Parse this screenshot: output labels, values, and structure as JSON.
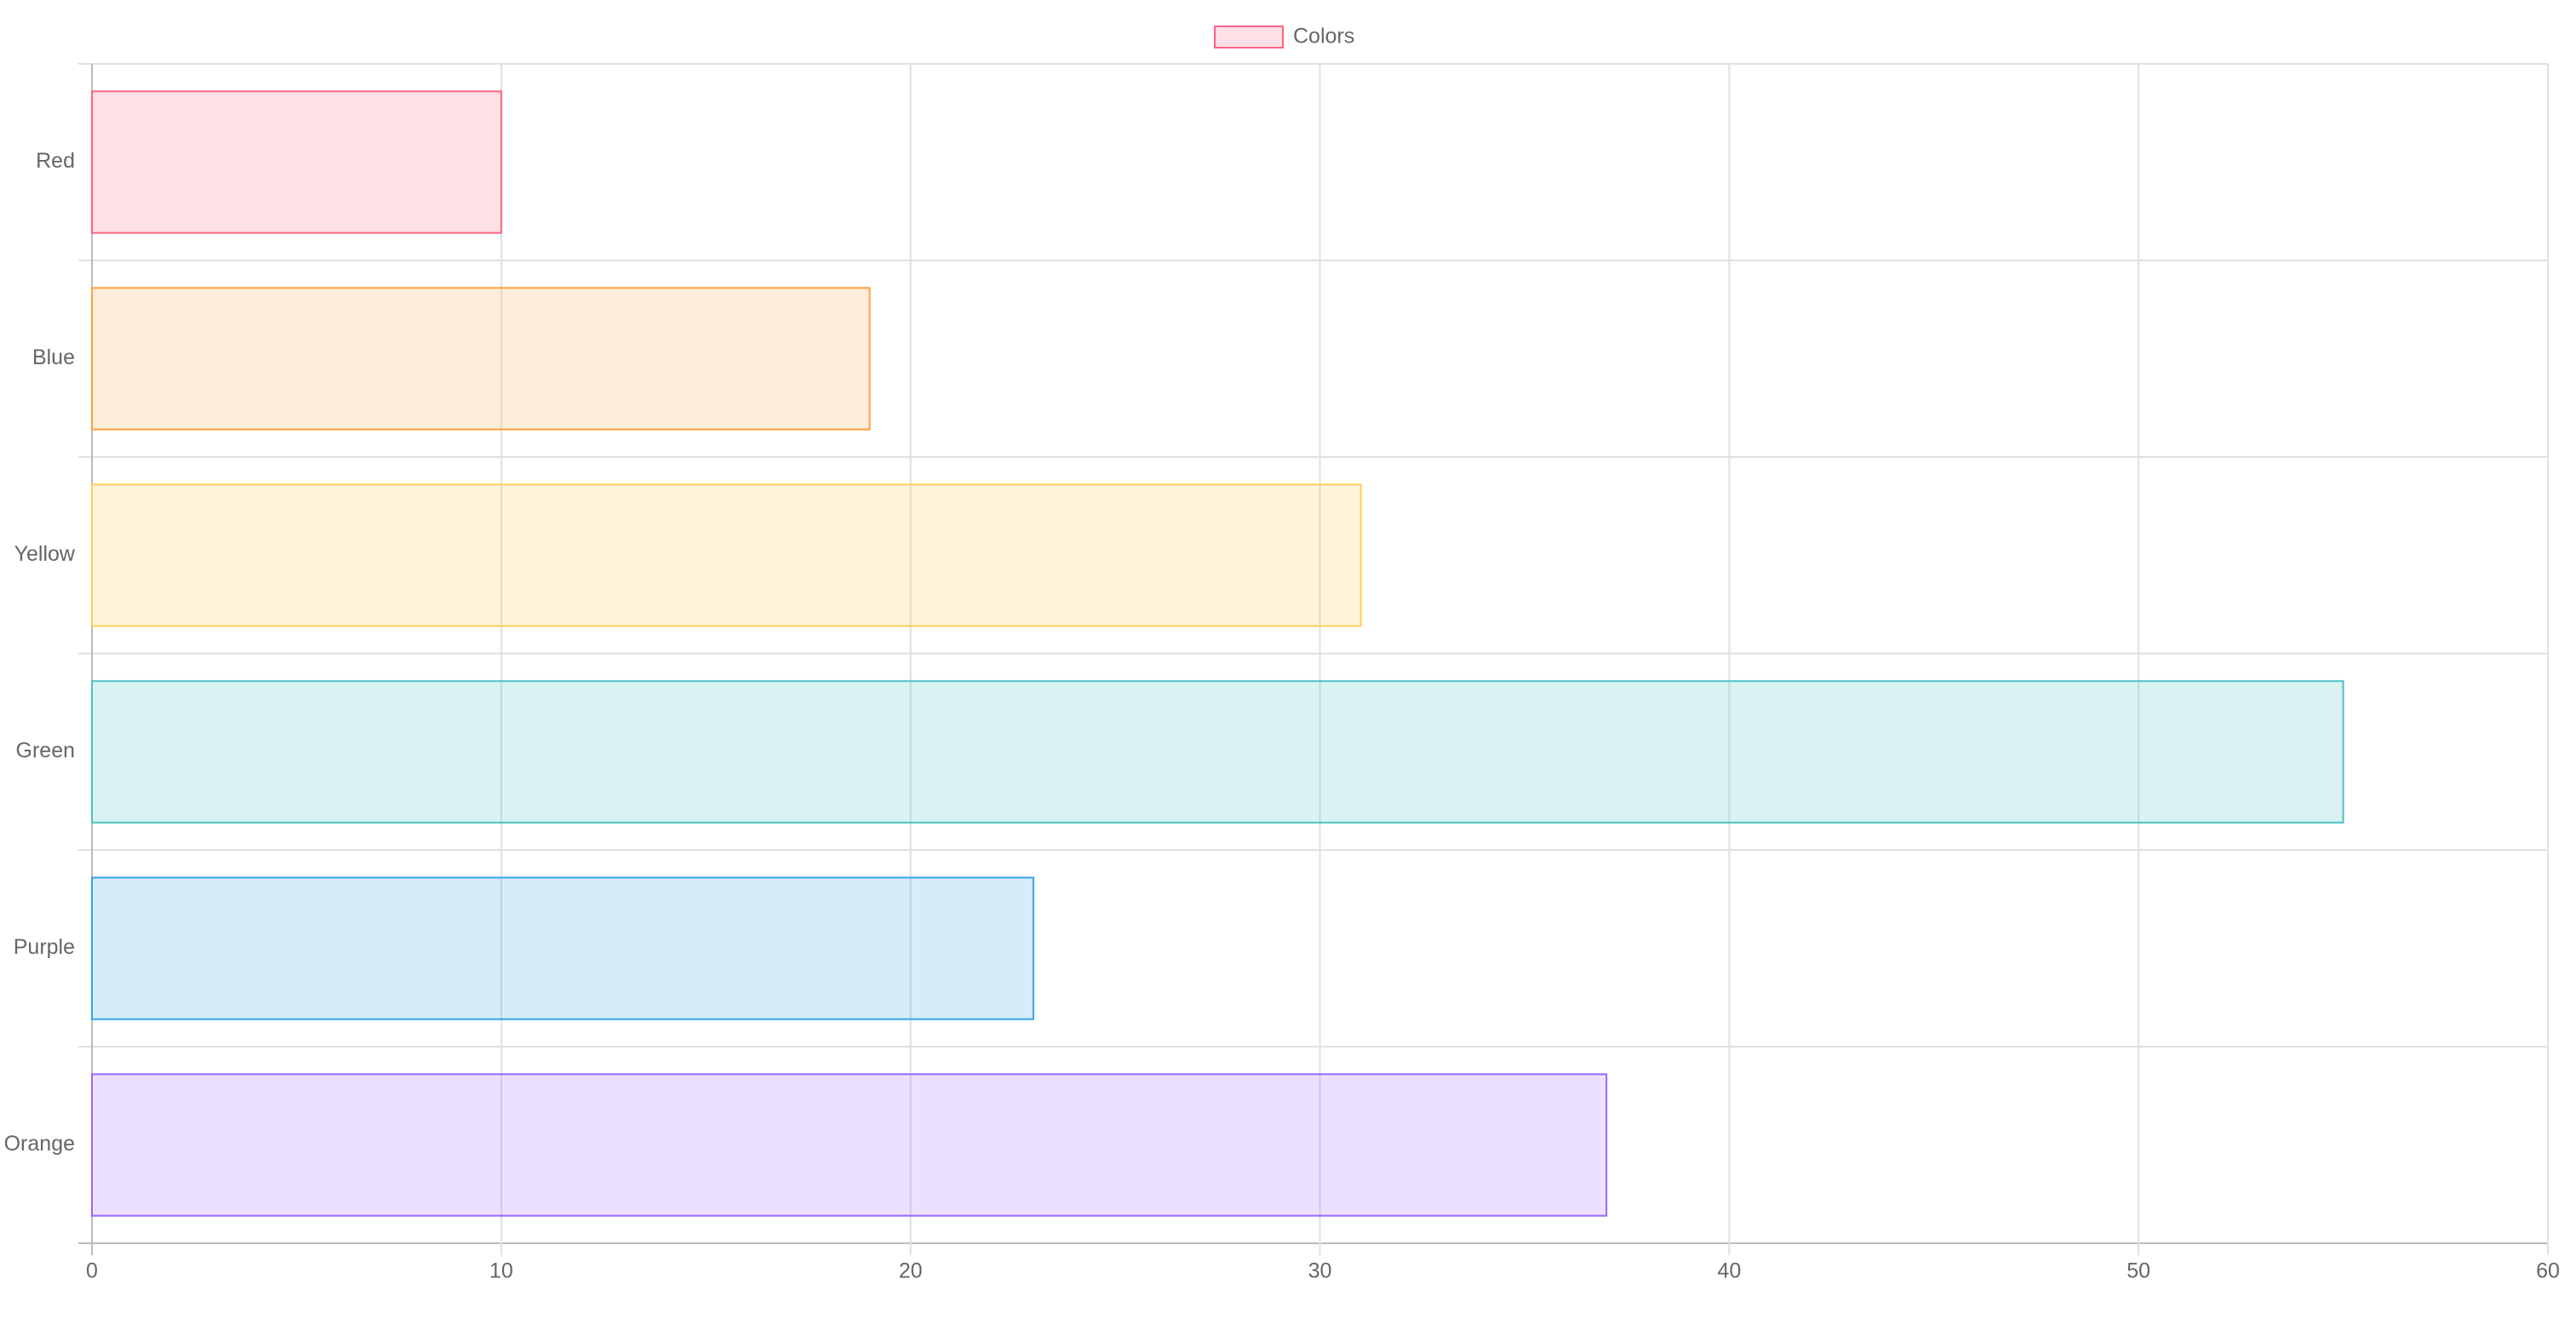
{
  "chart_data": {
    "type": "horizontal_bar",
    "categories": [
      "Red",
      "Blue",
      "Yellow",
      "Green",
      "Purple",
      "Orange"
    ],
    "series": [
      {
        "name": "Colors",
        "colors": [
          "#ff6384",
          "#ff9f40",
          "#ffcd56",
          "#4bc0c0",
          "#36a2eb",
          "#9966ff"
        ],
        "values": [
          10,
          19,
          31,
          55,
          23,
          37
        ]
      }
    ],
    "xlim": [
      0,
      60
    ],
    "xticks": [
      0,
      10,
      20,
      30,
      40,
      50,
      60
    ],
    "grid": true,
    "legend": "top"
  }
}
